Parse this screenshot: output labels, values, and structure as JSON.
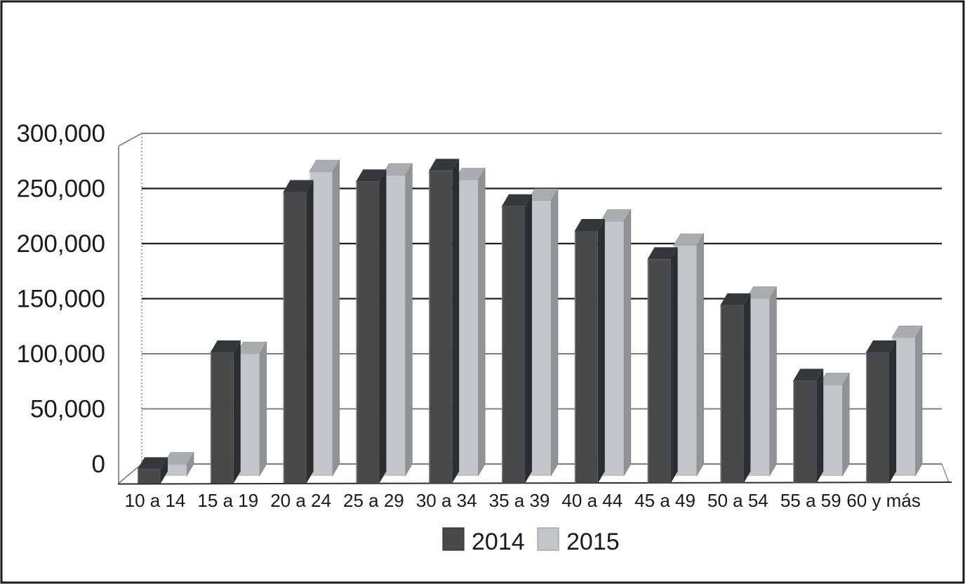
{
  "chart_data": {
    "type": "bar",
    "variant": "3d-clustered-column",
    "title": "",
    "categories": [
      "10 a 14",
      "15 a 19",
      "20 a 24",
      "25 a 29",
      "30 a 34",
      "35 a 39",
      "40 a 44",
      "45 a 49",
      "50 a 54",
      "55 a 59",
      "60 y más"
    ],
    "series": [
      {
        "name": "2014",
        "values": [
          12000,
          111000,
          247000,
          256000,
          265000,
          235000,
          214000,
          190000,
          151000,
          87000,
          111000
        ]
      },
      {
        "name": "2015",
        "values": [
          10000,
          106000,
          264000,
          261000,
          257000,
          239000,
          221000,
          200000,
          154000,
          79000,
          120000
        ]
      }
    ],
    "xlabel": "",
    "ylabel": "",
    "ylim": [
      0,
      300000
    ],
    "ytick_step": 50000,
    "ytick_labels": [
      "0",
      "50,000",
      "100,000",
      "150,000",
      "200,000",
      "250,000",
      "300,000"
    ],
    "grid": true,
    "legend_position": "bottom-center",
    "style": {
      "background": "#ffffff",
      "frame_border": "#1a1a1a",
      "wall_edge": "#7d7d7d",
      "axis_line": "#2e2e2e",
      "gridline_dark": "#1f1f1f",
      "gridline_gray": "#7f7f7f",
      "grid_dark_values": [
        150000,
        200000,
        250000
      ],
      "text_color": "#1a1a1a",
      "series_colors": [
        {
          "front": "#47494b",
          "top": "#35383a",
          "side": "#2b2e30",
          "edge": "#8f8f8f"
        },
        {
          "front": "#c3c6c8",
          "top": "#a9adaf",
          "side": "#8f9395",
          "edge": "#e4e6e7"
        }
      ]
    }
  }
}
